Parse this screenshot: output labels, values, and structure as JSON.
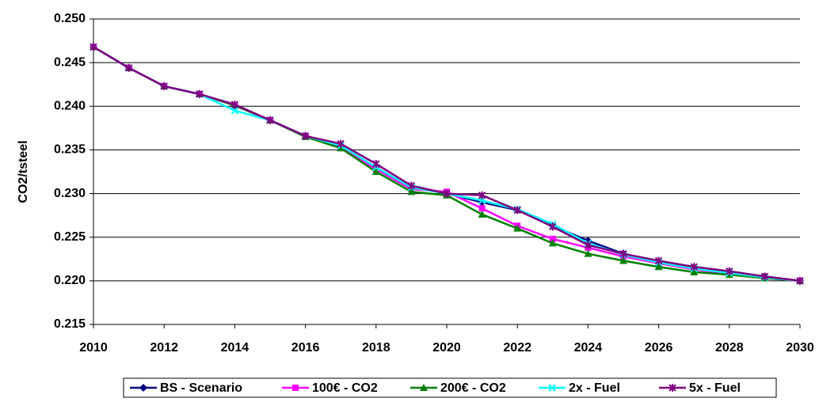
{
  "chart_data": {
    "type": "line",
    "y_label": "CO2/tsteel",
    "x": [
      2010,
      2011,
      2012,
      2013,
      2014,
      2015,
      2016,
      2017,
      2018,
      2019,
      2020,
      2021,
      2022,
      2023,
      2024,
      2025,
      2026,
      2027,
      2028,
      2029,
      2030
    ],
    "xlim": [
      2010,
      2030
    ],
    "xticks": [
      2010,
      2012,
      2014,
      2016,
      2018,
      2020,
      2022,
      2024,
      2026,
      2028,
      2030
    ],
    "ylim": [
      0.215,
      0.25
    ],
    "yticks": [
      0.215,
      {
        "value": 0.22,
        "label": "0.220"
      },
      0.225,
      {
        "value": 0.23,
        "label": "0.230"
      },
      0.235,
      {
        "value": 0.24,
        "label": "0.240"
      },
      0.245,
      {
        "value": 0.25,
        "label": "0.250"
      }
    ],
    "grid": true,
    "legend": "bottom",
    "series": [
      {
        "name": "BS - Scenario",
        "color": "#000080",
        "marker": "diamond",
        "values": [
          0.2468,
          0.2444,
          0.2423,
          0.2414,
          0.2401,
          0.2384,
          0.2366,
          0.2355,
          0.233,
          0.2307,
          0.23,
          0.229,
          0.2281,
          0.2263,
          0.2246,
          0.2231,
          0.2222,
          0.2215,
          0.221,
          0.2205,
          0.22
        ]
      },
      {
        "name": "100€ - CO2",
        "color": "#ff00ff",
        "marker": "square",
        "values": [
          0.2468,
          0.2444,
          0.2423,
          0.2414,
          0.2401,
          0.2384,
          0.2366,
          0.2353,
          0.2328,
          0.2305,
          0.2302,
          0.2283,
          0.2263,
          0.2248,
          0.2238,
          0.2228,
          0.222,
          0.2213,
          0.2208,
          0.2203,
          0.22
        ]
      },
      {
        "name": "200€ - CO2",
        "color": "#008000",
        "marker": "triangle",
        "values": [
          0.2468,
          0.2444,
          0.2423,
          0.2414,
          0.2401,
          0.2384,
          0.2365,
          0.2352,
          0.2325,
          0.2302,
          0.2298,
          0.2276,
          0.226,
          0.2243,
          0.2231,
          0.2223,
          0.2216,
          0.221,
          0.2207,
          0.2203,
          0.22
        ]
      },
      {
        "name": "2x - Fuel",
        "color": "#00ffff",
        "marker": "x",
        "values": [
          0.2468,
          0.2444,
          0.2423,
          0.2414,
          0.2395,
          0.2384,
          0.2366,
          0.2355,
          0.233,
          0.2307,
          0.23,
          0.2292,
          0.2282,
          0.2265,
          0.2243,
          0.223,
          0.2221,
          0.2214,
          0.2209,
          0.2204,
          0.22
        ]
      },
      {
        "name": "5x - Fuel",
        "color": "#800080",
        "marker": "star",
        "values": [
          0.2468,
          0.2444,
          0.2423,
          0.2414,
          0.2402,
          0.2384,
          0.2366,
          0.2357,
          0.2334,
          0.2309,
          0.23,
          0.2298,
          0.2281,
          0.2262,
          0.2241,
          0.2231,
          0.2223,
          0.2216,
          0.2211,
          0.2205,
          0.22
        ]
      }
    ]
  }
}
